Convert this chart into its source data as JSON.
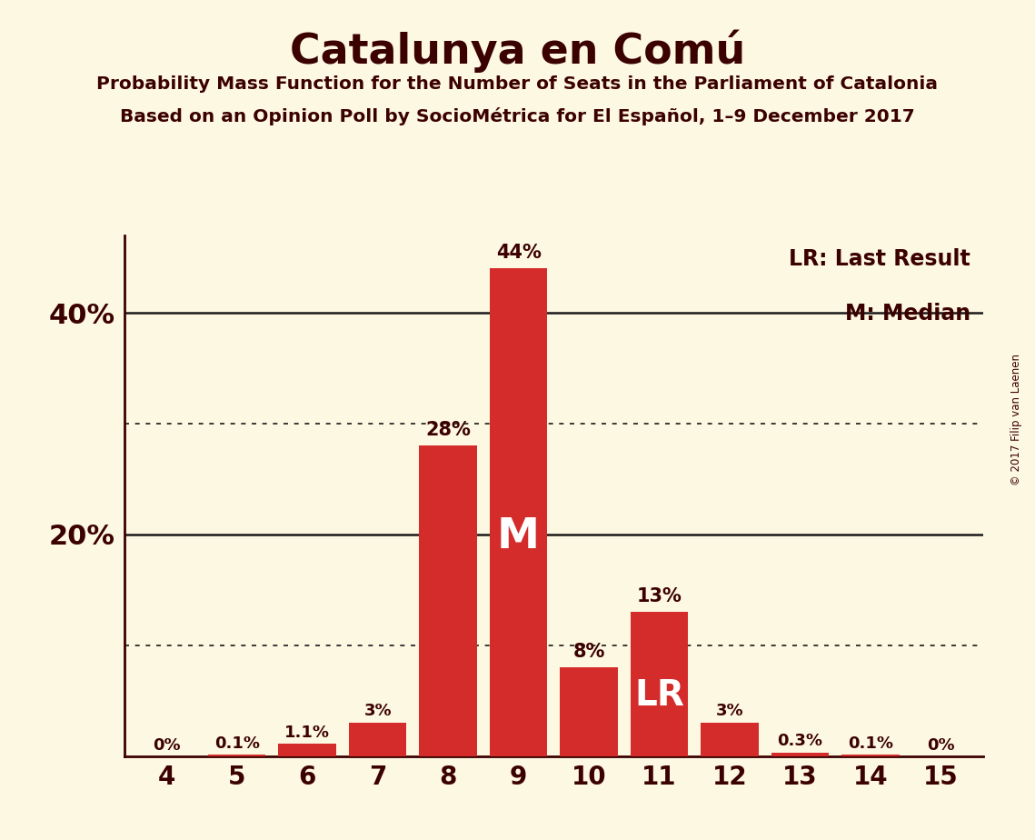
{
  "title": "Catalunya en Comú",
  "subtitle1": "Probability Mass Function for the Number of Seats in the Parliament of Catalonia",
  "subtitle2": "Based on an Opinion Poll by SocioMétrica for El Español, 1–9 December 2017",
  "copyright": "© 2017 Filip van Laenen",
  "legend_lr": "LR: Last Result",
  "legend_m": "M: Median",
  "categories": [
    4,
    5,
    6,
    7,
    8,
    9,
    10,
    11,
    12,
    13,
    14,
    15
  ],
  "values": [
    0.0,
    0.1,
    1.1,
    3.0,
    28.0,
    44.0,
    8.0,
    13.0,
    3.0,
    0.3,
    0.1,
    0.0
  ],
  "labels": [
    "0%",
    "0.1%",
    "1.1%",
    "3%",
    "28%",
    "44%",
    "8%",
    "13%",
    "3%",
    "0.3%",
    "0.1%",
    "0%"
  ],
  "bar_color": "#d42b2b",
  "background_color": "#fdf8e1",
  "text_color": "#3b0000",
  "grid_color": "#1a1a1a",
  "median_seat": 9,
  "lr_seat": 11,
  "ylim_max": 47,
  "solid_lines": [
    20,
    40
  ],
  "dotted_lines": [
    10,
    30
  ]
}
